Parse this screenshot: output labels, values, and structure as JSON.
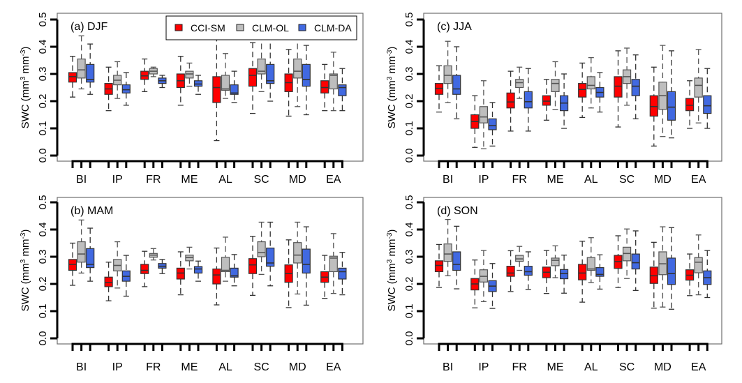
{
  "chart_data": {
    "type": "boxplot",
    "ylabel": "SWC (mm³ mm⁻³)",
    "ylabel_parts": {
      "pre": "SWC  (mm",
      "sup1": "3",
      "mid": " mm",
      "sup2": "-3",
      "post": ")"
    },
    "ylim": [
      0.0,
      0.5
    ],
    "yticks": [
      "0.0",
      "0.1",
      "0.2",
      "0.3",
      "0.4",
      "0.5"
    ],
    "categories": [
      "BI",
      "IP",
      "FR",
      "ME",
      "AL",
      "SC",
      "MD",
      "EA"
    ],
    "legend": {
      "placement": "top-right of panel (a)",
      "entries": [
        {
          "name": "CCI-SM",
          "color": "#ff0000"
        },
        {
          "name": "CLM-OL",
          "color": "#bebebe"
        },
        {
          "name": "CLM-DA",
          "color": "#4169e1"
        }
      ]
    },
    "panels": [
      {
        "id": "a",
        "title": "(a) DJF",
        "series": {
          "CCI-SM": [
            {
              "lo": 0.215,
              "q1": 0.27,
              "med": 0.29,
              "q3": 0.305,
              "hi": 0.365
            },
            {
              "lo": 0.165,
              "q1": 0.225,
              "med": 0.245,
              "q3": 0.265,
              "hi": 0.325
            },
            {
              "lo": 0.235,
              "q1": 0.28,
              "med": 0.293,
              "q3": 0.31,
              "hi": 0.355
            },
            {
              "lo": 0.185,
              "q1": 0.25,
              "med": 0.275,
              "q3": 0.3,
              "hi": 0.365
            },
            {
              "lo": 0.055,
              "q1": 0.195,
              "med": 0.25,
              "q3": 0.29,
              "hi": 0.44
            },
            {
              "lo": 0.155,
              "q1": 0.255,
              "med": 0.295,
              "q3": 0.32,
              "hi": 0.415
            },
            {
              "lo": 0.145,
              "q1": 0.235,
              "med": 0.268,
              "q3": 0.3,
              "hi": 0.39
            },
            {
              "lo": 0.165,
              "q1": 0.23,
              "med": 0.25,
              "q3": 0.275,
              "hi": 0.335
            }
          ],
          "CLM-OL": [
            {
              "lo": 0.245,
              "q1": 0.285,
              "med": 0.315,
              "q3": 0.355,
              "hi": 0.44
            },
            {
              "lo": 0.21,
              "q1": 0.26,
              "med": 0.277,
              "q3": 0.295,
              "hi": 0.345
            },
            {
              "lo": 0.29,
              "q1": 0.3,
              "med": 0.31,
              "q3": 0.32,
              "hi": 0.325
            },
            {
              "lo": 0.255,
              "q1": 0.285,
              "med": 0.3,
              "q3": 0.31,
              "hi": 0.34
            },
            {
              "lo": 0.21,
              "q1": 0.24,
              "med": 0.245,
              "q3": 0.295,
              "hi": 0.375
            },
            {
              "lo": 0.235,
              "q1": 0.3,
              "med": 0.31,
              "q3": 0.355,
              "hi": 0.445
            },
            {
              "lo": 0.18,
              "q1": 0.285,
              "med": 0.31,
              "q3": 0.355,
              "hi": 0.445
            },
            {
              "lo": 0.165,
              "q1": 0.245,
              "med": 0.295,
              "q3": 0.3,
              "hi": 0.38
            }
          ],
          "CLM-DA": [
            {
              "lo": 0.225,
              "q1": 0.27,
              "med": 0.28,
              "q3": 0.335,
              "hi": 0.41
            },
            {
              "lo": 0.185,
              "q1": 0.23,
              "med": 0.242,
              "q3": 0.26,
              "hi": 0.305
            },
            {
              "lo": 0.25,
              "q1": 0.265,
              "med": 0.275,
              "q3": 0.285,
              "hi": 0.295
            },
            {
              "lo": 0.225,
              "q1": 0.255,
              "med": 0.263,
              "q3": 0.275,
              "hi": 0.295
            },
            {
              "lo": 0.195,
              "q1": 0.225,
              "med": 0.23,
              "q3": 0.26,
              "hi": 0.31
            },
            {
              "lo": 0.2,
              "q1": 0.265,
              "med": 0.275,
              "q3": 0.335,
              "hi": 0.445
            },
            {
              "lo": 0.15,
              "q1": 0.255,
              "med": 0.28,
              "q3": 0.335,
              "hi": 0.405
            },
            {
              "lo": 0.165,
              "q1": 0.22,
              "med": 0.25,
              "q3": 0.26,
              "hi": 0.32
            }
          ]
        }
      },
      {
        "id": "c",
        "title": "(c) JJA",
        "series": {
          "CCI-SM": [
            {
              "lo": 0.16,
              "q1": 0.225,
              "med": 0.247,
              "q3": 0.265,
              "hi": 0.33
            },
            {
              "lo": 0.03,
              "q1": 0.1,
              "med": 0.125,
              "q3": 0.15,
              "hi": 0.22
            },
            {
              "lo": 0.09,
              "q1": 0.175,
              "med": 0.197,
              "q3": 0.23,
              "hi": 0.31
            },
            {
              "lo": 0.13,
              "q1": 0.185,
              "med": 0.2,
              "q3": 0.22,
              "hi": 0.28
            },
            {
              "lo": 0.14,
              "q1": 0.215,
              "med": 0.243,
              "q3": 0.265,
              "hi": 0.34
            },
            {
              "lo": 0.105,
              "q1": 0.215,
              "med": 0.255,
              "q3": 0.29,
              "hi": 0.385
            },
            {
              "lo": 0.035,
              "q1": 0.145,
              "med": 0.18,
              "q3": 0.22,
              "hi": 0.325
            },
            {
              "lo": 0.1,
              "q1": 0.165,
              "med": 0.185,
              "q3": 0.21,
              "hi": 0.275
            }
          ],
          "CLM-OL": [
            {
              "lo": 0.195,
              "q1": 0.265,
              "med": 0.295,
              "q3": 0.33,
              "hi": 0.42
            },
            {
              "lo": 0.025,
              "q1": 0.12,
              "med": 0.142,
              "q3": 0.18,
              "hi": 0.275
            },
            {
              "lo": 0.21,
              "q1": 0.25,
              "med": 0.268,
              "q3": 0.28,
              "hi": 0.325
            },
            {
              "lo": 0.17,
              "q1": 0.235,
              "med": 0.265,
              "q3": 0.28,
              "hi": 0.345
            },
            {
              "lo": 0.175,
              "q1": 0.245,
              "med": 0.258,
              "q3": 0.29,
              "hi": 0.36
            },
            {
              "lo": 0.185,
              "q1": 0.265,
              "med": 0.29,
              "q3": 0.315,
              "hi": 0.395
            },
            {
              "lo": 0.07,
              "q1": 0.17,
              "med": 0.22,
              "q3": 0.27,
              "hi": 0.405
            },
            {
              "lo": 0.12,
              "q1": 0.215,
              "med": 0.258,
              "q3": 0.285,
              "hi": 0.39
            }
          ],
          "CLM-DA": [
            {
              "lo": 0.135,
              "q1": 0.225,
              "med": 0.245,
              "q3": 0.295,
              "hi": 0.4
            },
            {
              "lo": 0.035,
              "q1": 0.095,
              "med": 0.11,
              "q3": 0.135,
              "hi": 0.195
            },
            {
              "lo": 0.09,
              "q1": 0.175,
              "med": 0.198,
              "q3": 0.235,
              "hi": 0.32
            },
            {
              "lo": 0.1,
              "q1": 0.165,
              "med": 0.193,
              "q3": 0.22,
              "hi": 0.3
            },
            {
              "lo": 0.16,
              "q1": 0.215,
              "med": 0.232,
              "q3": 0.25,
              "hi": 0.305
            },
            {
              "lo": 0.135,
              "q1": 0.22,
              "med": 0.255,
              "q3": 0.28,
              "hi": 0.37
            },
            {
              "lo": 0.065,
              "q1": 0.13,
              "med": 0.178,
              "q3": 0.235,
              "hi": 0.385
            },
            {
              "lo": 0.1,
              "q1": 0.155,
              "med": 0.183,
              "q3": 0.22,
              "hi": 0.32
            }
          ]
        }
      },
      {
        "id": "b",
        "title": "(b) MAM",
        "series": {
          "CCI-SM": [
            {
              "lo": 0.195,
              "q1": 0.25,
              "med": 0.272,
              "q3": 0.29,
              "hi": 0.35
            },
            {
              "lo": 0.138,
              "q1": 0.19,
              "med": 0.205,
              "q3": 0.225,
              "hi": 0.28
            },
            {
              "lo": 0.19,
              "q1": 0.238,
              "med": 0.25,
              "q3": 0.272,
              "hi": 0.32
            },
            {
              "lo": 0.16,
              "q1": 0.218,
              "med": 0.24,
              "q3": 0.258,
              "hi": 0.318
            },
            {
              "lo": 0.123,
              "q1": 0.2,
              "med": 0.233,
              "q3": 0.255,
              "hi": 0.332
            },
            {
              "lo": 0.158,
              "q1": 0.238,
              "med": 0.27,
              "q3": 0.293,
              "hi": 0.375
            },
            {
              "lo": 0.113,
              "q1": 0.206,
              "med": 0.238,
              "q3": 0.27,
              "hi": 0.362
            },
            {
              "lo": 0.147,
              "q1": 0.206,
              "med": 0.225,
              "q3": 0.245,
              "hi": 0.305
            }
          ],
          "CLM-OL": [
            {
              "lo": 0.24,
              "q1": 0.28,
              "med": 0.31,
              "q3": 0.355,
              "hi": 0.435
            },
            {
              "lo": 0.185,
              "q1": 0.248,
              "med": 0.268,
              "q3": 0.29,
              "hi": 0.355
            },
            {
              "lo": 0.288,
              "q1": 0.298,
              "med": 0.306,
              "q3": 0.312,
              "hi": 0.33
            },
            {
              "lo": 0.255,
              "q1": 0.285,
              "med": 0.297,
              "q3": 0.306,
              "hi": 0.335
            },
            {
              "lo": 0.21,
              "q1": 0.245,
              "med": 0.25,
              "q3": 0.298,
              "hi": 0.372
            },
            {
              "lo": 0.235,
              "q1": 0.3,
              "med": 0.315,
              "q3": 0.355,
              "hi": 0.427
            },
            {
              "lo": 0.163,
              "q1": 0.277,
              "med": 0.306,
              "q3": 0.352,
              "hi": 0.427
            },
            {
              "lo": 0.165,
              "q1": 0.245,
              "med": 0.295,
              "q3": 0.302,
              "hi": 0.385
            }
          ],
          "CLM-DA": [
            {
              "lo": 0.21,
              "q1": 0.26,
              "med": 0.272,
              "q3": 0.33,
              "hi": 0.405
            },
            {
              "lo": 0.155,
              "q1": 0.21,
              "med": 0.228,
              "q3": 0.248,
              "hi": 0.305
            },
            {
              "lo": 0.238,
              "q1": 0.258,
              "med": 0.265,
              "q3": 0.275,
              "hi": 0.29
            },
            {
              "lo": 0.21,
              "q1": 0.24,
              "med": 0.255,
              "q3": 0.264,
              "hi": 0.284
            },
            {
              "lo": 0.193,
              "q1": 0.225,
              "med": 0.23,
              "q3": 0.258,
              "hi": 0.308
            },
            {
              "lo": 0.193,
              "q1": 0.265,
              "med": 0.277,
              "q3": 0.332,
              "hi": 0.427
            },
            {
              "lo": 0.122,
              "q1": 0.24,
              "med": 0.272,
              "q3": 0.328,
              "hi": 0.41
            },
            {
              "lo": 0.16,
              "q1": 0.218,
              "med": 0.245,
              "q3": 0.258,
              "hi": 0.316
            }
          ]
        }
      },
      {
        "id": "d",
        "title": "(d) SON",
        "series": {
          "CCI-SM": [
            {
              "lo": 0.187,
              "q1": 0.245,
              "med": 0.268,
              "q3": 0.285,
              "hi": 0.345
            },
            {
              "lo": 0.112,
              "q1": 0.178,
              "med": 0.2,
              "q3": 0.22,
              "hi": 0.288
            },
            {
              "lo": 0.172,
              "q1": 0.228,
              "med": 0.24,
              "q3": 0.265,
              "hi": 0.322
            },
            {
              "lo": 0.165,
              "q1": 0.223,
              "med": 0.243,
              "q3": 0.262,
              "hi": 0.323
            },
            {
              "lo": 0.133,
              "q1": 0.215,
              "med": 0.24,
              "q3": 0.272,
              "hi": 0.357
            },
            {
              "lo": 0.187,
              "q1": 0.257,
              "med": 0.282,
              "q3": 0.305,
              "hi": 0.377
            },
            {
              "lo": 0.111,
              "q1": 0.202,
              "med": 0.23,
              "q3": 0.262,
              "hi": 0.353
            },
            {
              "lo": 0.157,
              "q1": 0.214,
              "med": 0.232,
              "q3": 0.252,
              "hi": 0.31
            }
          ],
          "CLM-OL": [
            {
              "lo": 0.23,
              "q1": 0.283,
              "med": 0.31,
              "q3": 0.347,
              "hi": 0.437
            },
            {
              "lo": 0.135,
              "q1": 0.207,
              "med": 0.228,
              "q3": 0.252,
              "hi": 0.323
            },
            {
              "lo": 0.25,
              "q1": 0.283,
              "med": 0.292,
              "q3": 0.305,
              "hi": 0.338
            },
            {
              "lo": 0.223,
              "q1": 0.267,
              "med": 0.287,
              "q3": 0.295,
              "hi": 0.34
            },
            {
              "lo": 0.205,
              "q1": 0.25,
              "med": 0.255,
              "q3": 0.297,
              "hi": 0.37
            },
            {
              "lo": 0.22,
              "q1": 0.285,
              "med": 0.312,
              "q3": 0.335,
              "hi": 0.402
            },
            {
              "lo": 0.115,
              "q1": 0.234,
              "med": 0.274,
              "q3": 0.318,
              "hi": 0.41
            },
            {
              "lo": 0.16,
              "q1": 0.241,
              "med": 0.28,
              "q3": 0.297,
              "hi": 0.38
            }
          ],
          "CLM-DA": [
            {
              "lo": 0.182,
              "q1": 0.25,
              "med": 0.272,
              "q3": 0.318,
              "hi": 0.412
            },
            {
              "lo": 0.11,
              "q1": 0.172,
              "med": 0.192,
              "q3": 0.212,
              "hi": 0.275
            },
            {
              "lo": 0.18,
              "q1": 0.232,
              "med": 0.245,
              "q3": 0.265,
              "hi": 0.318
            },
            {
              "lo": 0.166,
              "q1": 0.219,
              "med": 0.238,
              "q3": 0.253,
              "hi": 0.306
            },
            {
              "lo": 0.181,
              "q1": 0.228,
              "med": 0.235,
              "q3": 0.26,
              "hi": 0.307
            },
            {
              "lo": 0.176,
              "q1": 0.255,
              "med": 0.278,
              "q3": 0.31,
              "hi": 0.395
            },
            {
              "lo": 0.107,
              "q1": 0.198,
              "med": 0.238,
              "q3": 0.295,
              "hi": 0.407
            },
            {
              "lo": 0.15,
              "q1": 0.198,
              "med": 0.223,
              "q3": 0.248,
              "hi": 0.323
            }
          ]
        }
      }
    ]
  }
}
